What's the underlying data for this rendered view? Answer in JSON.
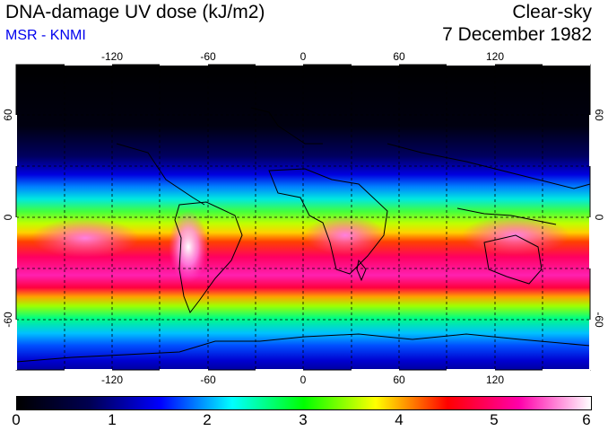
{
  "header": {
    "title": "DNA-damage UV dose (kJ/m2)",
    "credit": "MSR - KNMI",
    "condition": "Clear-sky",
    "date": "7 December 1982"
  },
  "colors": {
    "credit": "#0000ee"
  },
  "map": {
    "lon_ticks": [
      "-120",
      "-60",
      "0",
      "60",
      "120"
    ],
    "lat_ticks": [
      "60",
      "0",
      "-60"
    ]
  },
  "colorbar": {
    "labels": [
      "0",
      "1",
      "2",
      "3",
      "4",
      "5",
      "6"
    ],
    "stops": [
      "#000000",
      "#000050",
      "#0000ff",
      "#00ffff",
      "#00ff00",
      "#ffff00",
      "#ff0000",
      "#ff00aa",
      "#ffffff"
    ]
  }
}
